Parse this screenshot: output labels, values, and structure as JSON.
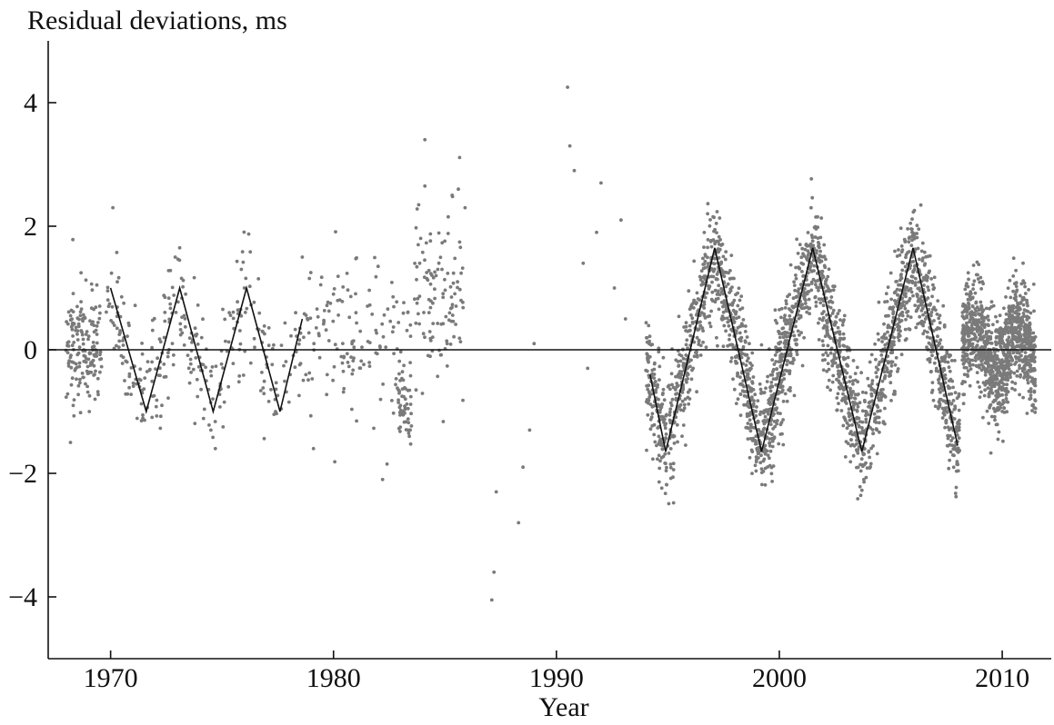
{
  "chart_data": {
    "type": "scatter",
    "title": "",
    "ylabel": "Residual deviations, ms",
    "xlabel": "Year",
    "xlim": [
      1967.2,
      2012.2
    ],
    "ylim": [
      -5.0,
      5.0
    ],
    "xticks": [
      1970,
      1980,
      1990,
      2000,
      2010
    ],
    "xtick_labels": [
      "1970",
      "1980",
      "1990",
      "2000",
      "2010"
    ],
    "yticks": [
      -4,
      -2,
      0,
      2,
      4
    ],
    "ytick_labels": [
      "−4",
      "−2",
      "0",
      "2",
      "4"
    ],
    "zero_line": true,
    "grid": false,
    "colors": {
      "points": "#7a7a7a",
      "lines": "#111111",
      "axis": "#111111"
    },
    "anchor_points": [
      [
        1968.2,
        -1.5
      ],
      [
        1968.5,
        0.7
      ],
      [
        1968.9,
        -0.2
      ],
      [
        1969.3,
        -0.8
      ],
      [
        1970.1,
        2.3
      ],
      [
        1970.3,
        1.1
      ],
      [
        1971.3,
        -0.6
      ],
      [
        1972.3,
        -0.9
      ],
      [
        1972.9,
        1.5
      ],
      [
        1973.1,
        1.65
      ],
      [
        1974.5,
        -1.3
      ],
      [
        1974.7,
        -1.6
      ],
      [
        1976.0,
        1.0
      ],
      [
        1977.4,
        -1.0
      ],
      [
        1978.3,
        0.6
      ],
      [
        1978.6,
        1.5
      ],
      [
        1979.1,
        -1.6
      ],
      [
        1980.0,
        0.9
      ],
      [
        1981.2,
        0.3
      ],
      [
        1982.0,
        1.35
      ],
      [
        1982.2,
        -2.1
      ],
      [
        1982.4,
        -1.85
      ],
      [
        1983.1,
        -1.0
      ],
      [
        1983.4,
        -1.4
      ],
      [
        1983.8,
        1.7
      ],
      [
        1984.1,
        3.4
      ],
      [
        1984.1,
        2.65
      ],
      [
        1984.6,
        1.2
      ],
      [
        1985.1,
        0.1
      ],
      [
        1985.6,
        2.6
      ],
      [
        1985.9,
        2.3
      ],
      [
        1987.1,
        -4.05
      ],
      [
        1987.2,
        -3.6
      ],
      [
        1987.3,
        -2.3
      ],
      [
        1988.3,
        -2.8
      ],
      [
        1988.5,
        -1.9
      ],
      [
        1988.8,
        -1.3
      ],
      [
        1989.0,
        0.1
      ],
      [
        1990.5,
        4.25
      ],
      [
        1990.6,
        3.3
      ],
      [
        1990.8,
        2.9
      ],
      [
        1991.2,
        1.4
      ],
      [
        1991.4,
        -0.3
      ],
      [
        1991.8,
        1.9
      ],
      [
        1992.0,
        2.7
      ],
      [
        1992.6,
        1.0
      ],
      [
        1992.9,
        2.1
      ],
      [
        1993.1,
        0.5
      ]
    ],
    "segments": [
      {
        "x": [
          1970.0,
          1971.6,
          1973.1,
          1974.6,
          1976.1,
          1977.6,
          1978.6
        ],
        "y": [
          1.0,
          -1.0,
          1.0,
          -1.0,
          1.0,
          -1.0,
          0.5
        ]
      },
      {
        "x": [
          1994.2,
          1994.9,
          1997.1,
          1999.2,
          2001.5,
          2003.7,
          2006.0,
          2008.0
        ],
        "y": [
          -0.4,
          -1.65,
          1.65,
          -1.65,
          1.65,
          -1.65,
          1.65,
          -1.55
        ]
      }
    ]
  }
}
